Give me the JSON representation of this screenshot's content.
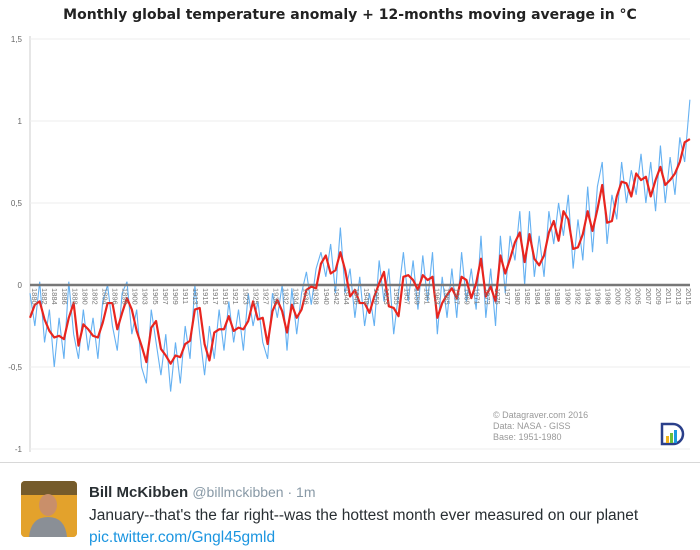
{
  "chart_data": {
    "type": "line",
    "title": "Monthly global temperature anomaly + 12-months moving average in °C",
    "xlim": [
      1880,
      2016.1
    ],
    "ylim": [
      -1,
      1.5
    ],
    "yticks": [
      "1,5",
      "1",
      "0,5",
      "0",
      "-0,5",
      "-1"
    ],
    "ytick_values": [
      1.5,
      1,
      0.5,
      0,
      -0.5,
      -1
    ],
    "xtick_labels": [
      "1880",
      "1882",
      "1884",
      "1886",
      "1888",
      "1890",
      "1892",
      "1894",
      "1896",
      "1898",
      "1900",
      "1903",
      "1905",
      "1907",
      "1909",
      "1911",
      "1913",
      "1915",
      "1917",
      "1919",
      "1921",
      "1923",
      "1925",
      "1927",
      "1930",
      "1932",
      "1934",
      "1936",
      "1938",
      "1940",
      "1942",
      "1944",
      "1946",
      "1948",
      "1950",
      "1953",
      "1955",
      "1957",
      "1959",
      "1961",
      "1963",
      "1965",
      "1967",
      "1969",
      "1971",
      "1973",
      "1975",
      "1977",
      "1980",
      "1982",
      "1984",
      "1986",
      "1988",
      "1990",
      "1992",
      "1994",
      "1996",
      "1998",
      "2000",
      "2002",
      "2005",
      "2007",
      "2009",
      "2011",
      "2013",
      "2015"
    ],
    "grid": "horizontal",
    "x": [
      1880,
      1881,
      1882,
      1883,
      1884,
      1885,
      1886,
      1887,
      1888,
      1889,
      1890,
      1891,
      1892,
      1893,
      1894,
      1895,
      1896,
      1897,
      1898,
      1899,
      1900,
      1901,
      1902,
      1903,
      1904,
      1905,
      1906,
      1907,
      1908,
      1909,
      1910,
      1911,
      1912,
      1913,
      1914,
      1915,
      1916,
      1917,
      1918,
      1919,
      1920,
      1921,
      1922,
      1923,
      1924,
      1925,
      1926,
      1927,
      1928,
      1929,
      1930,
      1931,
      1932,
      1933,
      1934,
      1935,
      1936,
      1937,
      1938,
      1939,
      1940,
      1941,
      1942,
      1943,
      1944,
      1945,
      1946,
      1947,
      1948,
      1949,
      1950,
      1951,
      1952,
      1953,
      1954,
      1955,
      1956,
      1957,
      1958,
      1959,
      1960,
      1961,
      1962,
      1963,
      1964,
      1965,
      1966,
      1967,
      1968,
      1969,
      1970,
      1971,
      1972,
      1973,
      1974,
      1975,
      1976,
      1977,
      1978,
      1979,
      1980,
      1981,
      1982,
      1983,
      1984,
      1985,
      1986,
      1987,
      1988,
      1989,
      1990,
      1991,
      1992,
      1993,
      1994,
      1995,
      1996,
      1997,
      1998,
      1999,
      2000,
      2001,
      2002,
      2003,
      2004,
      2005,
      2006,
      2007,
      2008,
      2009,
      2010,
      2011,
      2012,
      2013,
      2014,
      2015,
      2016
    ],
    "series": [
      {
        "role": "monthly",
        "color": "#4aa3f0",
        "values": [
          -0.05,
          -0.25,
          0.02,
          -0.35,
          -0.15,
          -0.5,
          -0.2,
          -0.45,
          0.02,
          -0.3,
          -0.45,
          -0.15,
          -0.4,
          -0.2,
          -0.45,
          -0.1,
          0.0,
          -0.25,
          -0.4,
          -0.05,
          0.02,
          -0.3,
          -0.15,
          -0.5,
          -0.6,
          -0.15,
          -0.35,
          -0.55,
          -0.3,
          -0.65,
          -0.35,
          -0.6,
          -0.25,
          -0.45,
          0.0,
          -0.3,
          -0.55,
          -0.25,
          -0.45,
          -0.15,
          -0.4,
          -0.1,
          -0.35,
          -0.15,
          -0.4,
          -0.05,
          -0.25,
          -0.1,
          -0.35,
          -0.45,
          -0.05,
          -0.2,
          0.0,
          -0.4,
          -0.02,
          -0.3,
          -0.05,
          0.08,
          -0.12,
          0.1,
          0.2,
          0.05,
          0.25,
          -0.05,
          0.35,
          -0.05,
          0.1,
          -0.2,
          0.05,
          -0.25,
          -0.05,
          -0.25,
          0.15,
          -0.1,
          0.1,
          -0.3,
          -0.05,
          0.2,
          -0.1,
          0.15,
          -0.15,
          0.18,
          -0.1,
          0.2,
          -0.3,
          0.05,
          -0.2,
          0.1,
          -0.2,
          0.2,
          -0.1,
          0.1,
          -0.15,
          0.3,
          -0.2,
          0.1,
          -0.25,
          0.3,
          -0.05,
          0.3,
          0.15,
          0.45,
          0.0,
          0.45,
          0.05,
          0.3,
          0.05,
          0.45,
          0.25,
          0.5,
          0.3,
          0.55,
          0.1,
          0.4,
          0.15,
          0.6,
          0.2,
          0.6,
          0.75,
          0.25,
          0.55,
          0.4,
          0.75,
          0.5,
          0.7,
          0.55,
          0.8,
          0.5,
          0.75,
          0.45,
          0.85,
          0.5,
          0.78,
          0.55,
          0.9,
          0.75,
          1.13
        ]
      },
      {
        "name": "12-months moving average",
        "color": "#e8251f",
        "values": [
          -0.2,
          -0.12,
          -0.1,
          -0.21,
          -0.28,
          -0.32,
          -0.31,
          -0.33,
          -0.2,
          -0.11,
          -0.37,
          -0.24,
          -0.27,
          -0.31,
          -0.32,
          -0.23,
          -0.11,
          -0.11,
          -0.27,
          -0.17,
          -0.08,
          -0.15,
          -0.28,
          -0.37,
          -0.47,
          -0.26,
          -0.22,
          -0.39,
          -0.43,
          -0.48,
          -0.43,
          -0.44,
          -0.36,
          -0.34,
          -0.15,
          -0.14,
          -0.36,
          -0.46,
          -0.29,
          -0.27,
          -0.27,
          -0.19,
          -0.28,
          -0.26,
          -0.27,
          -0.22,
          -0.1,
          -0.21,
          -0.2,
          -0.36,
          -0.16,
          -0.09,
          -0.16,
          -0.29,
          -0.12,
          -0.2,
          -0.15,
          -0.03,
          -0.01,
          -0.02,
          0.13,
          0.18,
          0.07,
          0.09,
          0.2,
          0.09,
          -0.07,
          -0.03,
          -0.11,
          -0.11,
          -0.17,
          -0.07,
          0.01,
          0.08,
          -0.13,
          -0.14,
          -0.19,
          0.05,
          0.06,
          0.03,
          -0.03,
          0.06,
          0.03,
          0.05,
          -0.2,
          -0.11,
          -0.06,
          -0.02,
          -0.08,
          0.05,
          0.03,
          -0.08,
          0.01,
          0.16,
          -0.07,
          -0.01,
          -0.1,
          0.18,
          0.07,
          0.16,
          0.26,
          0.32,
          0.14,
          0.31,
          0.16,
          0.12,
          0.18,
          0.32,
          0.39,
          0.27,
          0.45,
          0.4,
          0.22,
          0.23,
          0.31,
          0.45,
          0.33,
          0.46,
          0.61,
          0.38,
          0.39,
          0.54,
          0.63,
          0.62,
          0.54,
          0.68,
          0.64,
          0.66,
          0.54,
          0.64,
          0.72,
          0.61,
          0.64,
          0.68,
          0.75,
          0.87,
          0.89
        ]
      }
    ],
    "zero_line_color": "#777777",
    "credits": [
      "© Datagraver.com  2016",
      "Data: NASA - GISS",
      "Base: 1951-1980"
    ]
  },
  "tweet": {
    "name": "Bill McKibben",
    "handle": "@billmckibben · 1m",
    "text": "January--that's the far right--was the hottest month ever measured on our planet",
    "link": "pic.twitter.com/Gngl45gmld"
  }
}
